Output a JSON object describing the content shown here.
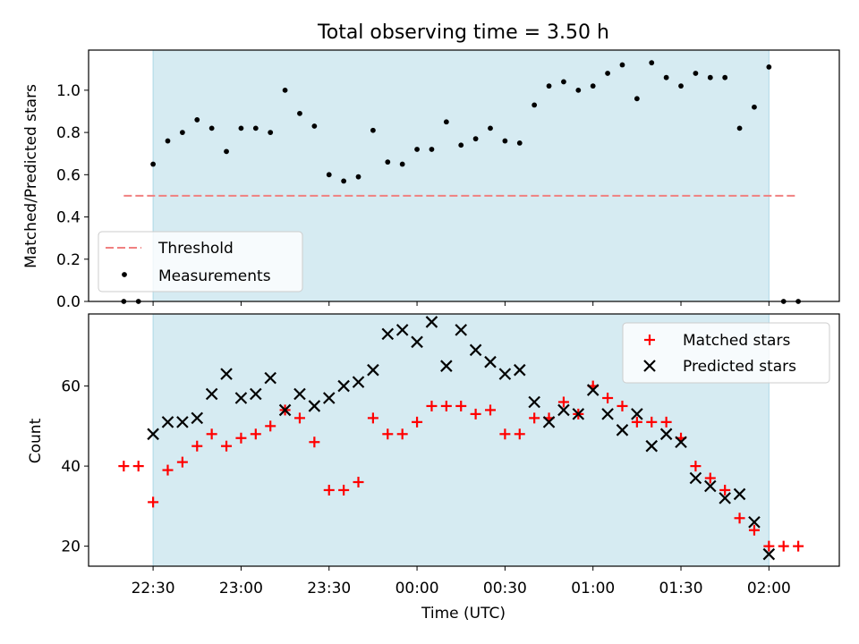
{
  "chart_data": [
    {
      "type": "scatter",
      "title": "Total observing time = 3.50 h",
      "ylabel": "Matched/Predicted stars",
      "ylim": [
        0,
        1.19
      ],
      "yticks": [
        "0.0",
        "0.2",
        "0.4",
        "0.6",
        "0.8",
        "1.0"
      ],
      "shaded_span": [
        "22:30",
        "02:00"
      ],
      "threshold": {
        "name": "Threshold",
        "value": 0.5,
        "x_start": "22:20",
        "x_end": "02:10",
        "color": "#f08080"
      },
      "legend": {
        "position": "lower-left",
        "entries": [
          "Threshold",
          "Measurements"
        ]
      },
      "series": [
        {
          "name": "Measurements",
          "color": "#000000",
          "x": [
            "22:20",
            "22:25",
            "22:30",
            "22:35",
            "22:40",
            "22:45",
            "22:50",
            "22:55",
            "23:00",
            "23:05",
            "23:10",
            "23:15",
            "23:20",
            "23:25",
            "23:30",
            "23:35",
            "23:40",
            "23:45",
            "23:50",
            "23:55",
            "00:00",
            "00:05",
            "00:10",
            "00:15",
            "00:20",
            "00:25",
            "00:30",
            "00:35",
            "00:40",
            "00:45",
            "00:50",
            "00:55",
            "01:00",
            "01:05",
            "01:10",
            "01:15",
            "01:20",
            "01:25",
            "01:30",
            "01:35",
            "01:40",
            "01:45",
            "01:50",
            "01:55",
            "02:00",
            "02:05",
            "02:10"
          ],
          "y": [
            0.0,
            0.0,
            0.65,
            0.76,
            0.8,
            0.86,
            0.82,
            0.71,
            0.82,
            0.82,
            0.8,
            1.0,
            0.89,
            0.83,
            0.6,
            0.57,
            0.59,
            0.81,
            0.66,
            0.65,
            0.72,
            0.72,
            0.85,
            0.74,
            0.77,
            0.82,
            0.76,
            0.75,
            0.93,
            1.02,
            1.04,
            1.0,
            1.02,
            1.08,
            1.12,
            0.96,
            1.13,
            1.06,
            1.02,
            1.08,
            1.06,
            1.06,
            0.82,
            0.92,
            1.11,
            0.0,
            0.0
          ]
        }
      ]
    },
    {
      "type": "scatter",
      "xlabel": "Time (UTC)",
      "ylabel": "Count",
      "ylim": [
        15,
        78
      ],
      "yticks": [
        "20",
        "40",
        "60"
      ],
      "xticks": [
        "22:30",
        "23:00",
        "23:30",
        "00:00",
        "00:30",
        "01:00",
        "01:30",
        "02:00"
      ],
      "shaded_span": [
        "22:30",
        "02:00"
      ],
      "legend": {
        "position": "top-right",
        "entries": [
          "Matched stars",
          "Predicted stars"
        ]
      },
      "series": [
        {
          "name": "Matched stars",
          "marker": "plus",
          "color": "#ff0000",
          "x": [
            "22:20",
            "22:25",
            "22:30",
            "22:35",
            "22:40",
            "22:45",
            "22:50",
            "22:55",
            "23:00",
            "23:05",
            "23:10",
            "23:15",
            "23:20",
            "23:25",
            "23:30",
            "23:35",
            "23:40",
            "23:45",
            "23:50",
            "23:55",
            "00:00",
            "00:05",
            "00:10",
            "00:15",
            "00:20",
            "00:25",
            "00:30",
            "00:35",
            "00:40",
            "00:45",
            "00:50",
            "00:55",
            "01:00",
            "01:05",
            "01:10",
            "01:15",
            "01:20",
            "01:25",
            "01:30",
            "01:35",
            "01:40",
            "01:45",
            "01:50",
            "01:55",
            "02:00",
            "02:05",
            "02:10"
          ],
          "y": [
            40,
            40,
            31,
            39,
            41,
            45,
            48,
            45,
            47,
            48,
            50,
            54,
            52,
            46,
            34,
            34,
            36,
            52,
            48,
            48,
            51,
            55,
            55,
            55,
            53,
            54,
            48,
            48,
            52,
            52,
            56,
            53,
            60,
            57,
            55,
            51,
            51,
            51,
            47,
            40,
            37,
            34,
            27,
            24,
            20,
            20,
            20
          ]
        },
        {
          "name": "Predicted stars",
          "marker": "x",
          "color": "#000000",
          "x": [
            "22:30",
            "22:35",
            "22:40",
            "22:45",
            "22:50",
            "22:55",
            "23:00",
            "23:05",
            "23:10",
            "23:15",
            "23:20",
            "23:25",
            "23:30",
            "23:35",
            "23:40",
            "23:45",
            "23:50",
            "23:55",
            "00:00",
            "00:05",
            "00:10",
            "00:15",
            "00:20",
            "00:25",
            "00:30",
            "00:35",
            "00:40",
            "00:45",
            "00:50",
            "00:55",
            "01:00",
            "01:05",
            "01:10",
            "01:15",
            "01:20",
            "01:25",
            "01:30",
            "01:35",
            "01:40",
            "01:45",
            "01:50",
            "01:55",
            "02:00"
          ],
          "y": [
            48,
            51,
            51,
            52,
            58,
            63,
            57,
            58,
            62,
            54,
            58,
            55,
            57,
            60,
            61,
            64,
            73,
            74,
            71,
            76,
            65,
            74,
            69,
            66,
            63,
            64,
            56,
            51,
            54,
            53,
            59,
            53,
            49,
            53,
            45,
            48,
            46,
            37,
            35,
            32,
            33,
            26,
            18
          ]
        }
      ]
    }
  ]
}
